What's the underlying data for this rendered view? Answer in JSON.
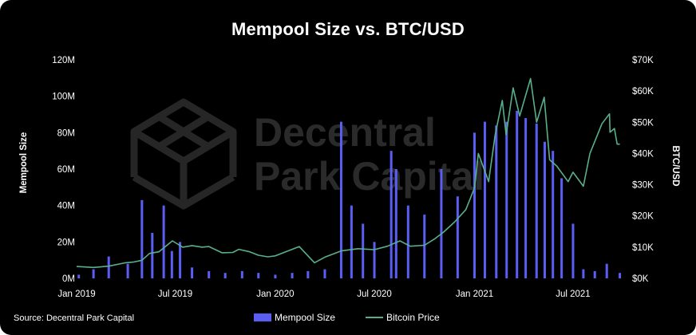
{
  "chart_data": {
    "type": "bar",
    "title": "Mempool Size vs. BTC/USD",
    "source": "Source: Decentral Park Capital",
    "watermark": [
      "Decentral",
      "Park Capital"
    ],
    "y_left_label": "Mempool Size",
    "y_right_label": "BTC/USD",
    "y_left_ticks": [
      "0M",
      "20M",
      "40M",
      "60M",
      "80M",
      "100M",
      "120M"
    ],
    "y_right_ticks": [
      "$0K",
      "$10K",
      "$20K",
      "$30K",
      "$40K",
      "$50K",
      "$60K",
      "$70K"
    ],
    "y_left_range": [
      0,
      120000000
    ],
    "y_right_range": [
      0,
      70000
    ],
    "x_range": [
      "2019-01-01",
      "2021-09-30"
    ],
    "x_ticks": [
      "Jan 2019",
      "Jul 2019",
      "Jan 2020",
      "Jul 2020",
      "Jan 2021",
      "Jul 2021"
    ],
    "colors": {
      "mempool": "#5b5ef5",
      "btc": "#58b08a",
      "background": "#000000"
    },
    "series": [
      {
        "name": "Mempool Size",
        "kind": "bar",
        "axis": "left",
        "x": [
          "2019-01-05",
          "2019-02-01",
          "2019-03-01",
          "2019-04-05",
          "2019-05-01",
          "2019-05-20",
          "2019-06-10",
          "2019-06-25",
          "2019-07-10",
          "2019-08-01",
          "2019-09-01",
          "2019-10-01",
          "2019-11-01",
          "2019-12-01",
          "2020-01-01",
          "2020-02-01",
          "2020-03-01",
          "2020-04-01",
          "2020-05-01",
          "2020-05-20",
          "2020-06-10",
          "2020-07-01",
          "2020-08-01",
          "2020-08-10",
          "2020-09-01",
          "2020-10-01",
          "2020-11-01",
          "2020-12-01",
          "2021-01-01",
          "2021-01-20",
          "2021-02-10",
          "2021-03-01",
          "2021-03-20",
          "2021-04-05",
          "2021-04-25",
          "2021-05-10",
          "2021-05-25",
          "2021-06-10",
          "2021-07-01",
          "2021-07-20",
          "2021-08-10",
          "2021-09-01",
          "2021-09-25"
        ],
        "values": [
          2000000,
          5000000,
          12000000,
          8000000,
          43000000,
          25000000,
          40000000,
          15000000,
          20000000,
          6000000,
          4000000,
          3000000,
          4000000,
          3000000,
          2000000,
          3000000,
          4000000,
          5000000,
          86000000,
          40000000,
          30000000,
          20000000,
          70000000,
          60000000,
          40000000,
          35000000,
          60000000,
          45000000,
          80000000,
          86000000,
          84000000,
          86000000,
          92000000,
          88000000,
          85000000,
          75000000,
          70000000,
          55000000,
          30000000,
          5000000,
          4000000,
          8000000,
          3000000
        ]
      },
      {
        "name": "Bitcoin Price",
        "kind": "line",
        "axis": "right",
        "x": [
          "2019-01-01",
          "2019-02-01",
          "2019-03-01",
          "2019-04-01",
          "2019-04-15",
          "2019-05-01",
          "2019-05-15",
          "2019-06-01",
          "2019-06-26",
          "2019-07-15",
          "2019-08-01",
          "2019-08-20",
          "2019-09-01",
          "2019-09-25",
          "2019-10-15",
          "2019-10-26",
          "2019-11-15",
          "2019-12-01",
          "2019-12-18",
          "2020-01-01",
          "2020-02-14",
          "2020-03-13",
          "2020-04-01",
          "2020-05-01",
          "2020-06-01",
          "2020-07-01",
          "2020-07-25",
          "2020-08-17",
          "2020-09-05",
          "2020-10-01",
          "2020-10-21",
          "2020-11-05",
          "2020-11-25",
          "2020-12-16",
          "2021-01-01",
          "2021-01-08",
          "2021-01-27",
          "2021-02-08",
          "2021-02-21",
          "2021-02-28",
          "2021-03-13",
          "2021-03-25",
          "2021-04-14",
          "2021-04-25",
          "2021-05-09",
          "2021-05-19",
          "2021-06-01",
          "2021-06-22",
          "2021-07-01",
          "2021-07-20",
          "2021-08-01",
          "2021-08-15",
          "2021-08-23",
          "2021-09-06",
          "2021-09-07",
          "2021-09-15",
          "2021-09-20",
          "2021-09-25"
        ],
        "values": [
          3800,
          3500,
          3900,
          5000,
          5200,
          5800,
          8000,
          8500,
          12000,
          10000,
          10500,
          10000,
          10200,
          8200,
          8300,
          9300,
          8500,
          7400,
          6900,
          7200,
          10200,
          5000,
          6800,
          8800,
          9500,
          9200,
          10300,
          12000,
          10300,
          10600,
          12800,
          14800,
          18000,
          22000,
          29000,
          40000,
          31000,
          46000,
          57000,
          46000,
          61000,
          52000,
          64000,
          50000,
          58000,
          38000,
          36000,
          31000,
          34000,
          29500,
          40000,
          46000,
          49500,
          52700,
          46800,
          48000,
          43000,
          43000
        ]
      }
    ]
  }
}
